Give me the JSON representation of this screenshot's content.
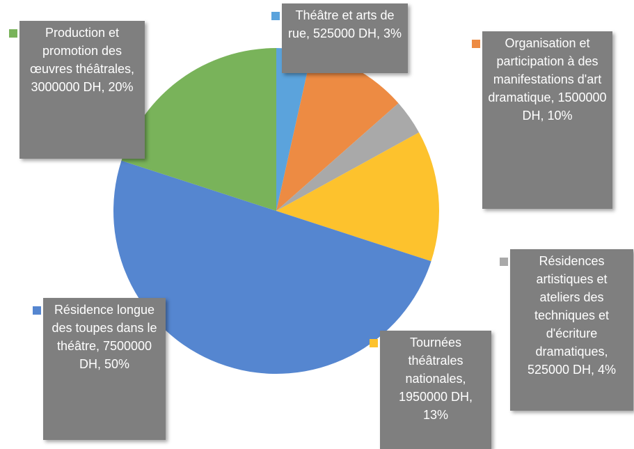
{
  "chart_data": {
    "type": "pie",
    "values": [
      525000,
      1500000,
      525000,
      1950000,
      7500000,
      3000000
    ],
    "value_labels": [
      "Théâtre et arts de rue, 525000 DH, 3%",
      "Organisation et participation à des manifestations d'art dramatique, 1500000 DH, 10%",
      "Résidences artistiques et ateliers des techniques et d'écriture dramatiques, 525000 DH, 4%",
      "Tournées théâtrales nationales, 1950000 DH, 13%",
      "Résidence longue des toupes dans le théâtre, 7500000 DH, 50%",
      "Production et promotion des œuvres théâtrales, 3000000 DH, 20%"
    ],
    "colors": [
      "#5ba3dc",
      "#ed8b43",
      "#a9a9a9",
      "#fdc22d",
      "#5586d0",
      "#79b35a"
    ]
  }
}
